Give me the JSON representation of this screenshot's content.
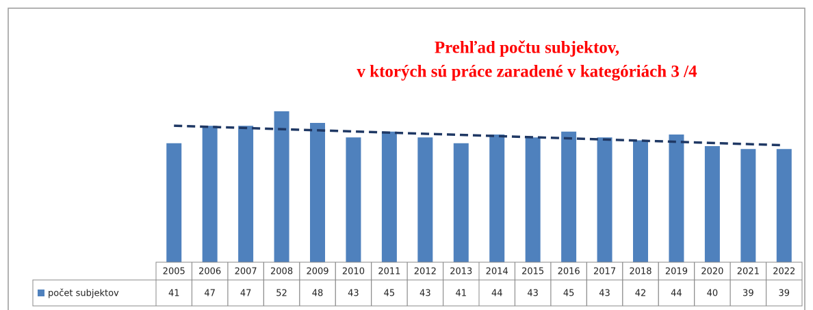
{
  "chart_data": {
    "type": "bar",
    "title": [
      "Prehľad počtu subjektov,",
      "v ktorých sú práce zaradené v kategóriách 3 /4"
    ],
    "categories": [
      "2005",
      "2006",
      "2007",
      "2008",
      "2009",
      "2010",
      "2011",
      "2012",
      "2013",
      "2014",
      "2015",
      "2016",
      "2017",
      "2018",
      "2019",
      "2020",
      "2021",
      "2022"
    ],
    "series": [
      {
        "name": "počet subjektov",
        "color": "#4f81bd",
        "values": [
          41,
          47,
          47,
          52,
          48,
          43,
          45,
          43,
          41,
          44,
          43,
          45,
          43,
          42,
          44,
          40,
          39,
          39
        ]
      }
    ],
    "ylim": [
      0,
      60
    ],
    "trendline": {
      "kind": "linear",
      "color": "#1f3864"
    }
  }
}
